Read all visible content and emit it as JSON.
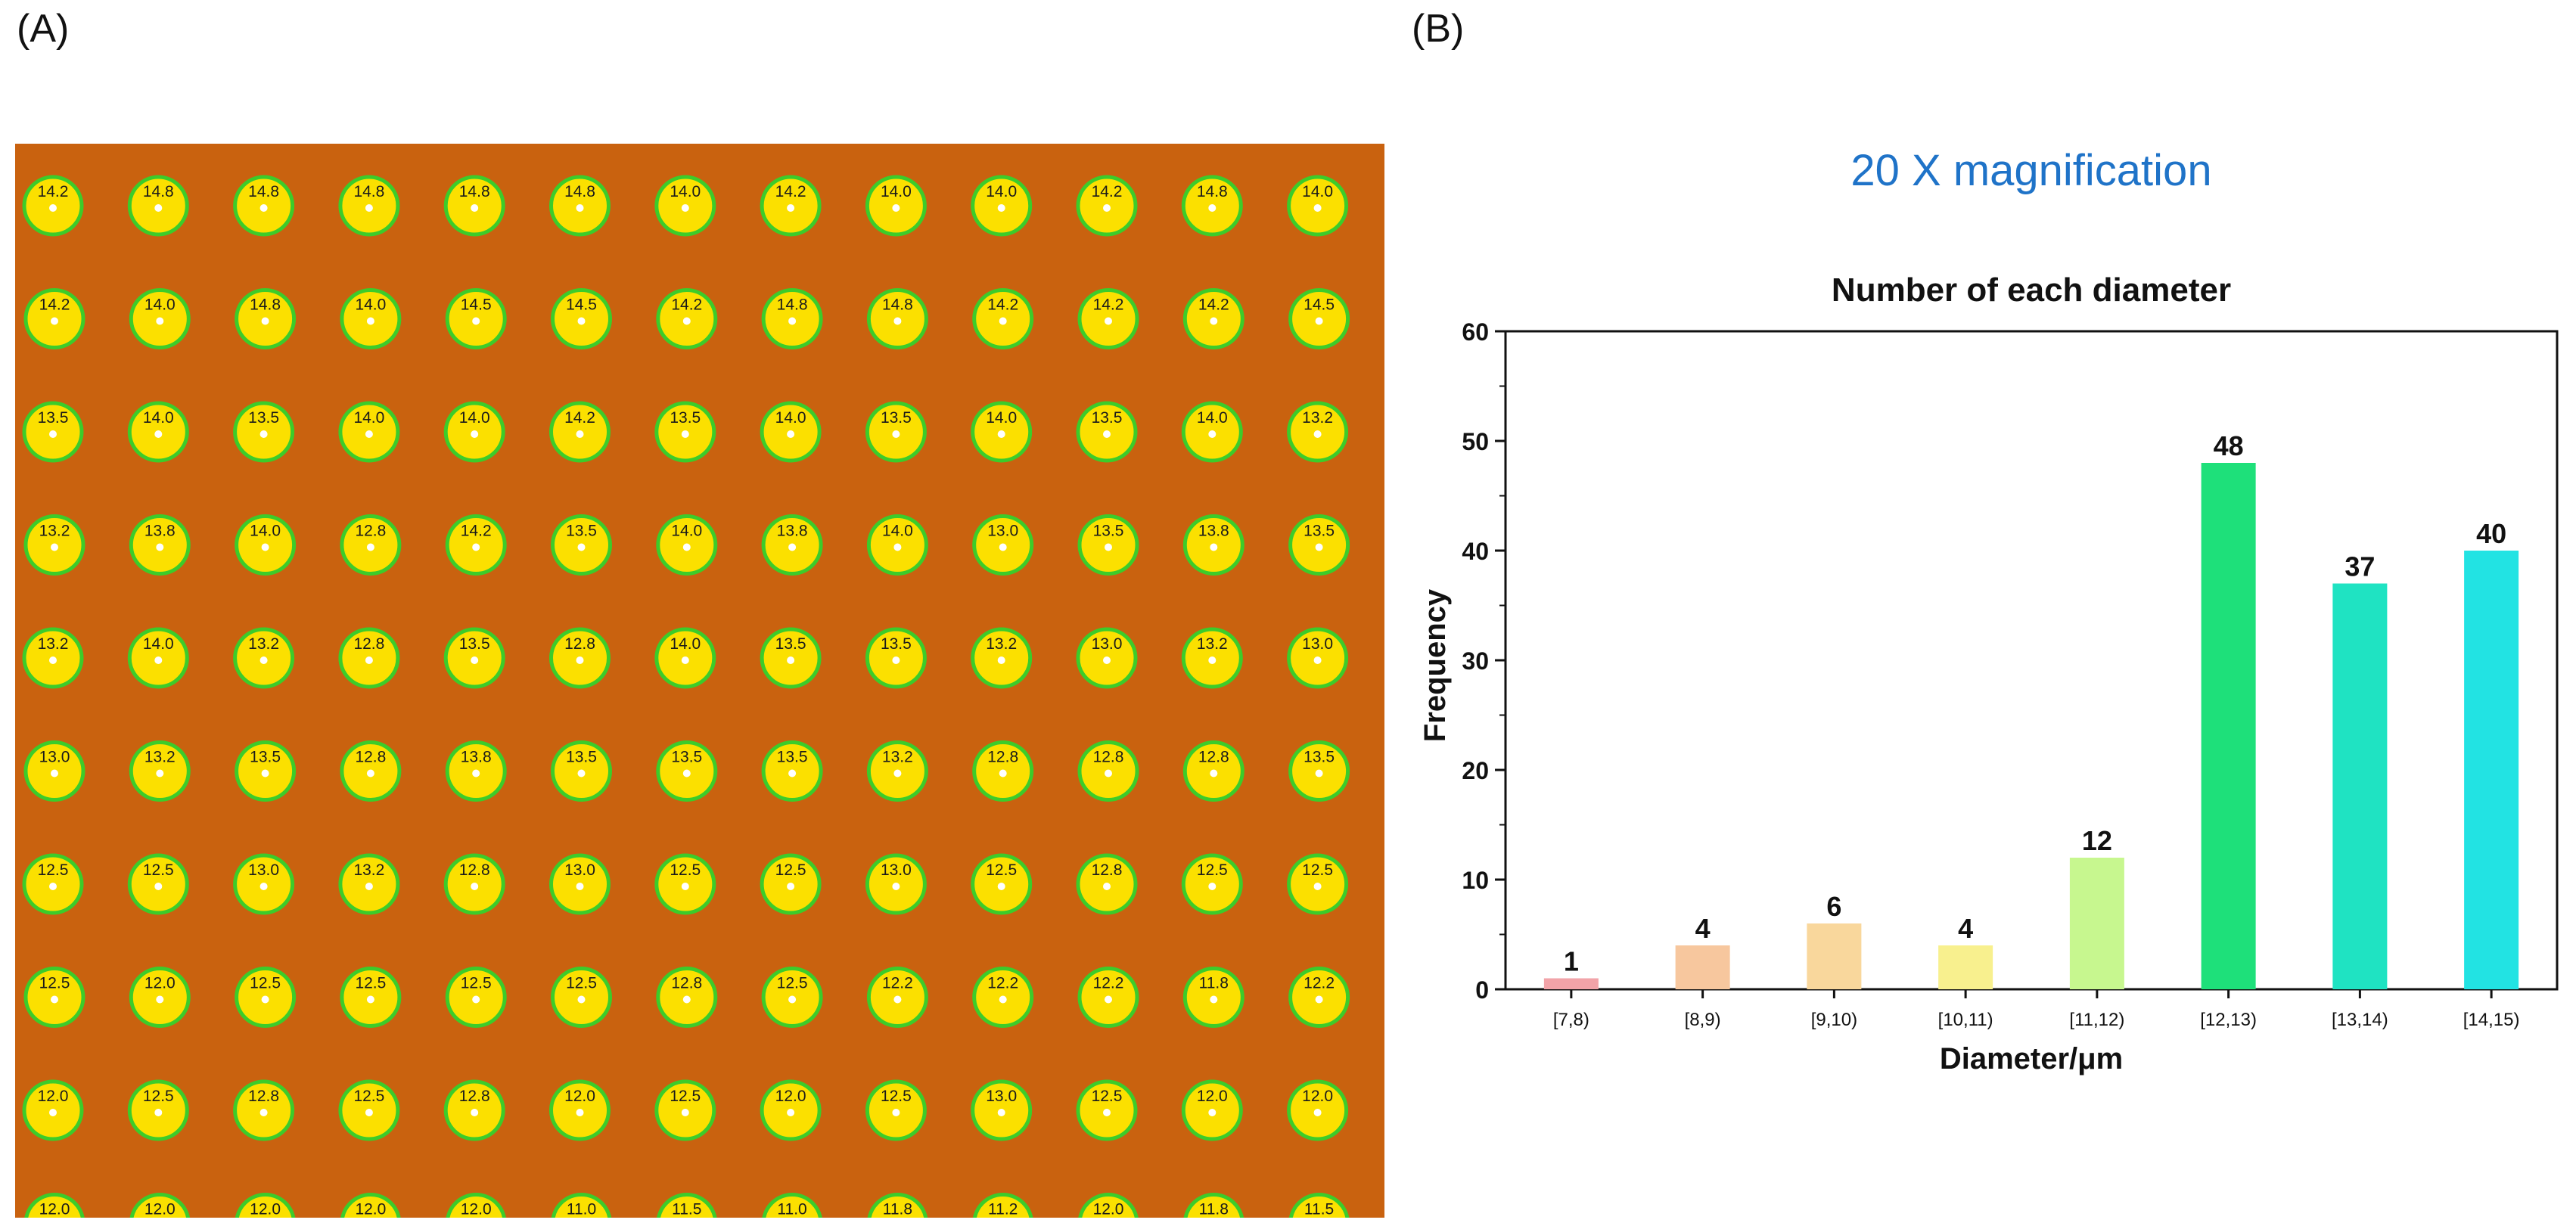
{
  "panels": {
    "a_label": "(A)",
    "b_label": "(B)"
  },
  "micrograph": {
    "rows": [
      [
        "14.2",
        "14.8",
        "14.8",
        "14.8",
        "14.8",
        "14.8",
        "14.0",
        "14.2",
        "14.0",
        "14.0",
        "14.2",
        "14.8",
        "14.0"
      ],
      [
        "14.2",
        "14.0",
        "14.8",
        "14.0",
        "14.5",
        "14.5",
        "14.2",
        "14.8",
        "14.8",
        "14.2",
        "14.2",
        "14.2",
        "14.5"
      ],
      [
        "13.5",
        "14.0",
        "13.5",
        "14.0",
        "14.0",
        "14.2",
        "13.5",
        "14.0",
        "13.5",
        "14.0",
        "13.5",
        "14.0",
        "13.2"
      ],
      [
        "13.2",
        "13.8",
        "14.0",
        "12.8",
        "14.2",
        "13.5",
        "14.0",
        "13.8",
        "14.0",
        "13.0",
        "13.5",
        "13.8",
        "13.5"
      ],
      [
        "13.2",
        "14.0",
        "13.2",
        "12.8",
        "13.5",
        "12.8",
        "14.0",
        "13.5",
        "13.5",
        "13.2",
        "13.0",
        "13.2",
        "13.0"
      ],
      [
        "13.0",
        "13.2",
        "13.5",
        "12.8",
        "13.8",
        "13.5",
        "13.5",
        "13.5",
        "13.2",
        "12.8",
        "12.8",
        "12.8",
        "13.5"
      ],
      [
        "12.5",
        "12.5",
        "13.0",
        "13.2",
        "12.8",
        "13.0",
        "12.5",
        "12.5",
        "13.0",
        "12.5",
        "12.8",
        "12.5",
        "12.5"
      ],
      [
        "12.5",
        "12.0",
        "12.5",
        "12.5",
        "12.5",
        "12.5",
        "12.8",
        "12.5",
        "12.2",
        "12.2",
        "12.2",
        "11.8",
        "12.2"
      ],
      [
        "12.0",
        "12.5",
        "12.8",
        "12.5",
        "12.8",
        "12.0",
        "12.5",
        "12.0",
        "12.5",
        "13.0",
        "12.5",
        "12.0",
        "12.0"
      ],
      [
        "12.0",
        "12.0",
        "12.0",
        "12.0",
        "12.0",
        "11.0",
        "11.5",
        "11.0",
        "11.8",
        "11.2",
        "12.0",
        "11.8",
        "11.5"
      ]
    ],
    "colors": {
      "background": "#c9620f",
      "well_fill": "#fbe000",
      "well_ring": "#3ccc2a",
      "label": "#1a1a1a"
    }
  },
  "chart_data": {
    "type": "bar",
    "magnification_title": "20 X magnification",
    "title": "Number of each diameter",
    "xlabel": "Diameter/μm",
    "ylabel": "Frequency",
    "ylim": [
      0,
      60
    ],
    "yticks": [
      0,
      10,
      20,
      30,
      40,
      50,
      60
    ],
    "categories": [
      "[7,8)",
      "[8,9)",
      "[9,10)",
      "[10,11)",
      "[11,12)",
      "[12,13)",
      "[13,14)",
      "[14,15)"
    ],
    "values": [
      1,
      4,
      6,
      4,
      12,
      48,
      37,
      40
    ],
    "data_labels": [
      "1",
      "4",
      "6",
      "4",
      "12",
      "48",
      "37",
      "40"
    ],
    "bar_colors": [
      "#f2a3a8",
      "#f7c79e",
      "#f9d79c",
      "#f8f08e",
      "#c7f78f",
      "#1ee07a",
      "#1fe3c2",
      "#22e3e3"
    ],
    "magnification_color": "#1f73c8"
  }
}
